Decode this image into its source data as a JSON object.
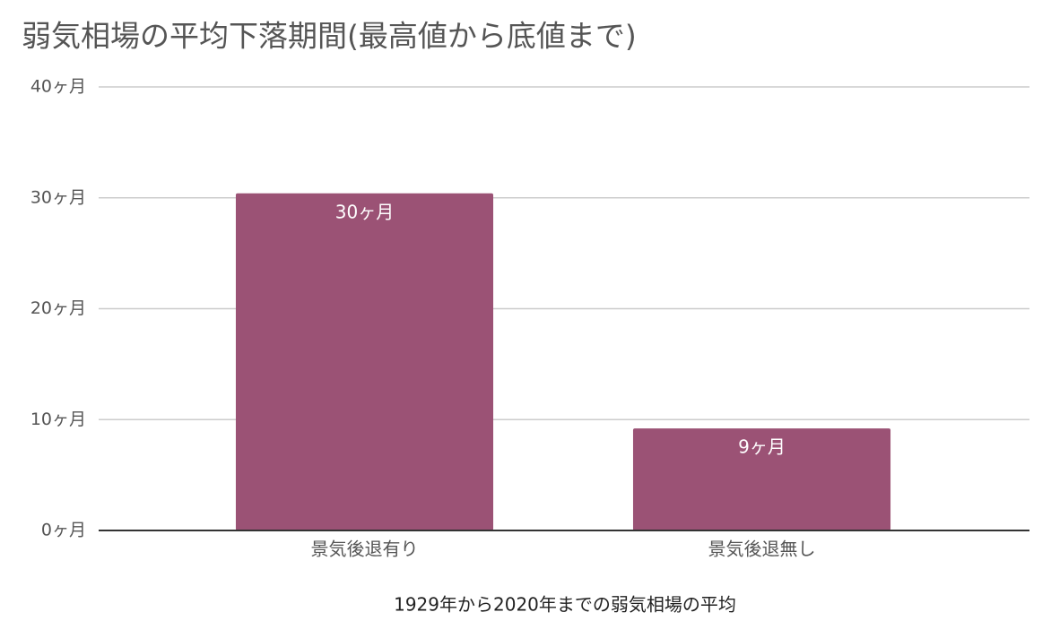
{
  "chart_data": {
    "type": "bar",
    "title": "弱気相場の平均下落期間(最高値から底値まで)",
    "x_label": "1929年から2020年までの弱気相場の平均",
    "categories": [
      "景気後退有り",
      "景気後退無し"
    ],
    "values": [
      30.4,
      9.2
    ],
    "value_labels": [
      "30ヶ月",
      "9ヶ月"
    ],
    "color": "#9b5275",
    "ylim": [
      0,
      40
    ],
    "yticks": [
      {
        "value": 0,
        "label": "0ヶ月"
      },
      {
        "value": 10,
        "label": "10ヶ月"
      },
      {
        "value": 20,
        "label": "20ヶ月"
      },
      {
        "value": 30,
        "label": "30ヶ月"
      },
      {
        "value": 40,
        "label": "40ヶ月"
      }
    ],
    "grid": true
  }
}
